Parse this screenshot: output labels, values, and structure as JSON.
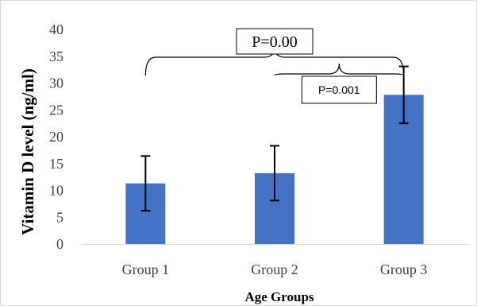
{
  "chart_data": {
    "type": "bar",
    "categories": [
      "Group 1",
      "Group 2",
      "Group 3"
    ],
    "values": [
      11.3,
      13.2,
      27.8
    ],
    "error": [
      5.1,
      5.1,
      5.3
    ],
    "xlabel": "Age Groups",
    "ylabel": "Vitamin D level (ng/ml)",
    "ylim": [
      0,
      40
    ],
    "yticks": [
      0,
      5,
      10,
      15,
      20,
      25,
      30,
      35,
      40
    ],
    "bar_color": "#4472C4",
    "grid": false,
    "annotations": [
      {
        "text": "P=0.00",
        "from": "Group 1",
        "to": "Group 3"
      },
      {
        "text": "P=0.001",
        "from": "Group 2",
        "to": "Group 3"
      }
    ]
  }
}
